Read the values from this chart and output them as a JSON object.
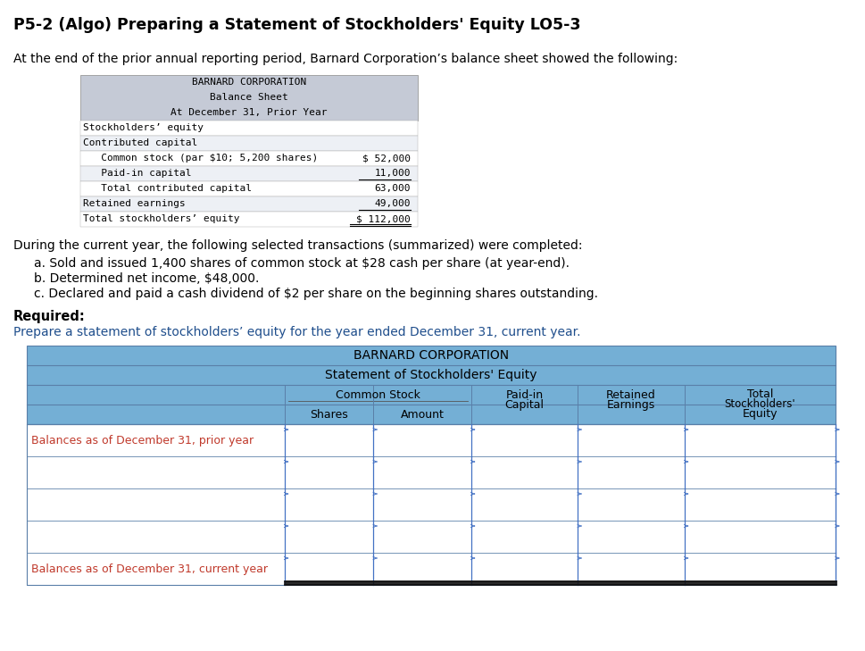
{
  "title": "P5-2 (Algo) Preparing a Statement of Stockholders' Equity LO5-3",
  "intro_text": "At the end of the prior annual reporting period, Barnard Corporation’s balance sheet showed the following:",
  "balance_sheet_header": [
    "BARNARD CORPORATION",
    "Balance Sheet",
    "At December 31, Prior Year"
  ],
  "balance_sheet_rows": [
    [
      "Stockholders’ equity",
      "",
      false
    ],
    [
      "Contributed capital",
      "",
      false
    ],
    [
      "   Common stock (par $10; 5,200 shares)",
      "$ 52,000",
      false
    ],
    [
      "   Paid-in capital",
      "11,000",
      true
    ],
    [
      "   Total contributed capital",
      "63,000",
      false
    ],
    [
      "Retained earnings",
      "49,000",
      true
    ],
    [
      "Total stockholders’ equity",
      "$ 112,000",
      false
    ]
  ],
  "transactions_header": "During the current year, the following selected transactions (summarized) were completed:",
  "transactions": [
    "a. Sold and issued 1,400 shares of common stock at $28 cash per share (at year-end).",
    "b. Determined net income, $48,000.",
    "c. Declared and paid a cash dividend of $2 per share on the beginning shares outstanding."
  ],
  "required_header": "Required:",
  "required_text": "Prepare a statement of stockholders’ equity for the year ended December 31, current year.",
  "stmt_corp_name": "BARNARD CORPORATION",
  "stmt_title": "Statement of Stockholders' Equity",
  "table_rows": [
    [
      "Balances as of December 31, prior year",
      true,
      false
    ],
    [
      "",
      false,
      false
    ],
    [
      "",
      false,
      false
    ],
    [
      "",
      false,
      false
    ],
    [
      "Balances as of December 31, current year",
      true,
      true
    ]
  ],
  "header_bg": "#74afd5",
  "bs_header_bg": "#c5cad6",
  "row_bg_white": "#ffffff",
  "text_color_dark": "#000000",
  "text_color_blue": "#1f4e8c",
  "text_color_orange": "#c0392b",
  "bg_color": "#ffffff",
  "col_line_color": "#4472c4",
  "table_border_color": "#5a7fa8"
}
